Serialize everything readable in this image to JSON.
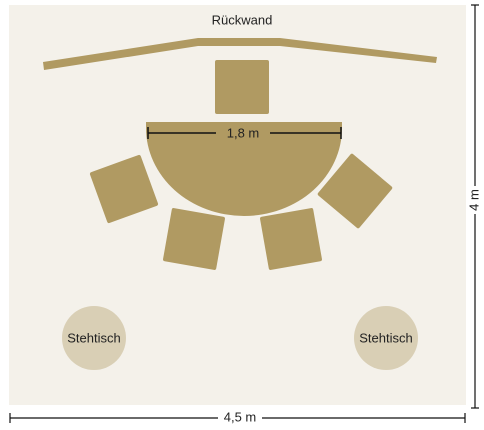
{
  "wall": {
    "label": "Rückwand"
  },
  "table": {
    "width_label": "1,8 m"
  },
  "standing_tables": [
    {
      "label": "Stehtisch"
    },
    {
      "label": "Stehtisch"
    }
  ],
  "dimensions": {
    "height": "4 m",
    "width": "4,5 m"
  }
}
